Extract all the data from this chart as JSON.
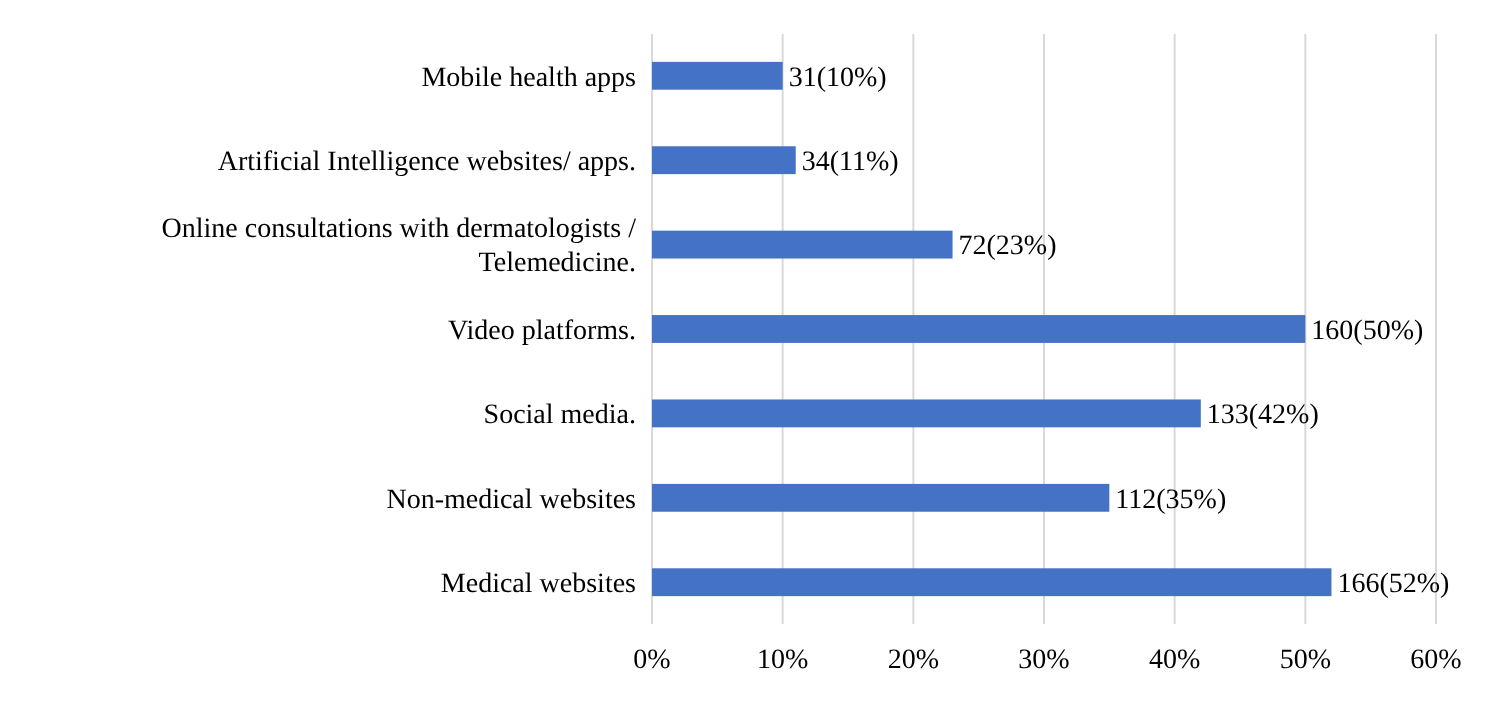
{
  "chart_data": {
    "type": "bar",
    "orientation": "horizontal",
    "categories": [
      "Mobile health apps",
      "Artificial Intelligence websites/ apps.",
      "Online consultations with dermatologists / Telemedicine.",
      "Video platforms.",
      "Social media.",
      "Non-medical websites",
      "Medical websites"
    ],
    "values": [
      10,
      11,
      23,
      50,
      42,
      35,
      52
    ],
    "value_labels": [
      "31(10%)",
      "34(11%)",
      "72(23%)",
      "160(50%)",
      "133(42%)",
      "112(35%)",
      "166(52%)"
    ],
    "color": "#4472c4",
    "xlim": [
      0,
      60
    ],
    "xticks": [
      {
        "value": 0,
        "label": "0%"
      },
      {
        "value": 10,
        "label": "10%"
      },
      {
        "value": 20,
        "label": "20%"
      },
      {
        "value": 30,
        "label": "30%"
      },
      {
        "value": 40,
        "label": "40%"
      },
      {
        "value": 50,
        "label": "50%"
      },
      {
        "value": 60,
        "label": "60%"
      }
    ],
    "grid": "x"
  }
}
